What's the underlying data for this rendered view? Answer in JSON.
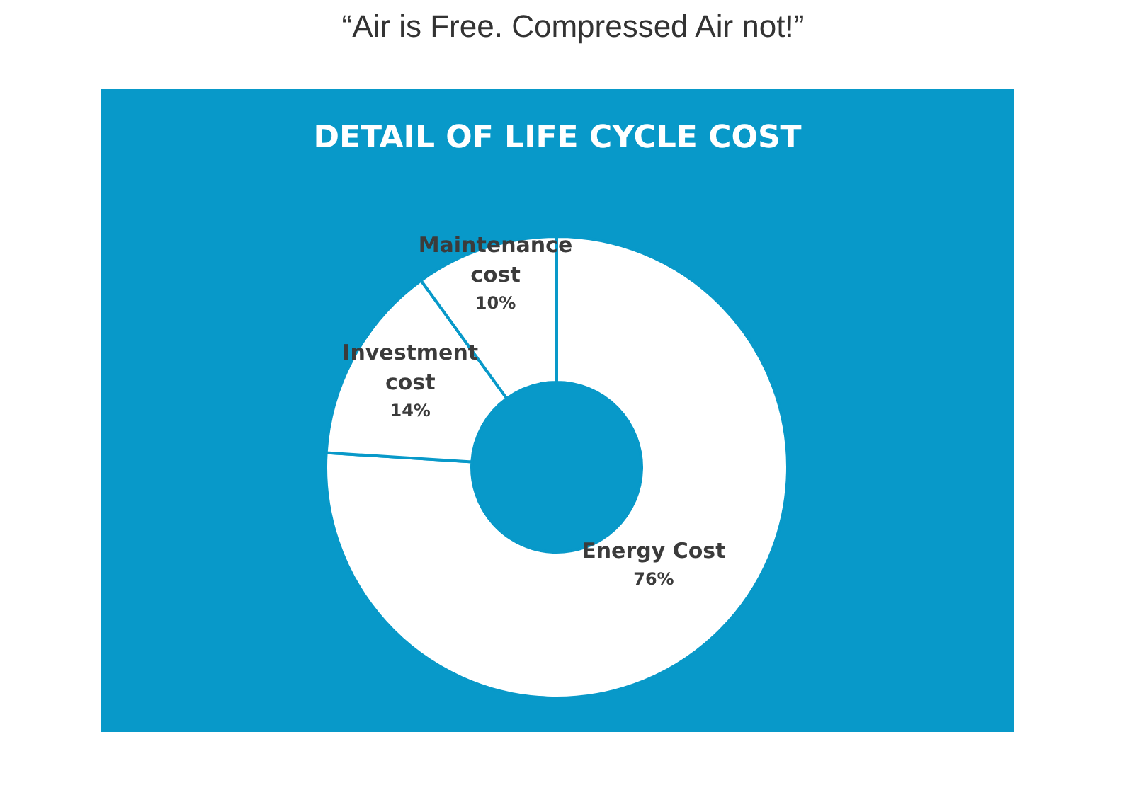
{
  "chart_data": {
    "type": "donut",
    "title": "“Air is Free. Compressed Air not!”",
    "subtitle": "DETAIL OF LIFE CYCLE COST",
    "categories": [
      "Energy Cost",
      "Investment cost",
      "Maintenance cost"
    ],
    "values": [
      76,
      14,
      10
    ],
    "value_labels": [
      "76%",
      "14%",
      "10%"
    ],
    "colors": [
      "#ffffff",
      "#ffffff",
      "#ffffff"
    ]
  }
}
